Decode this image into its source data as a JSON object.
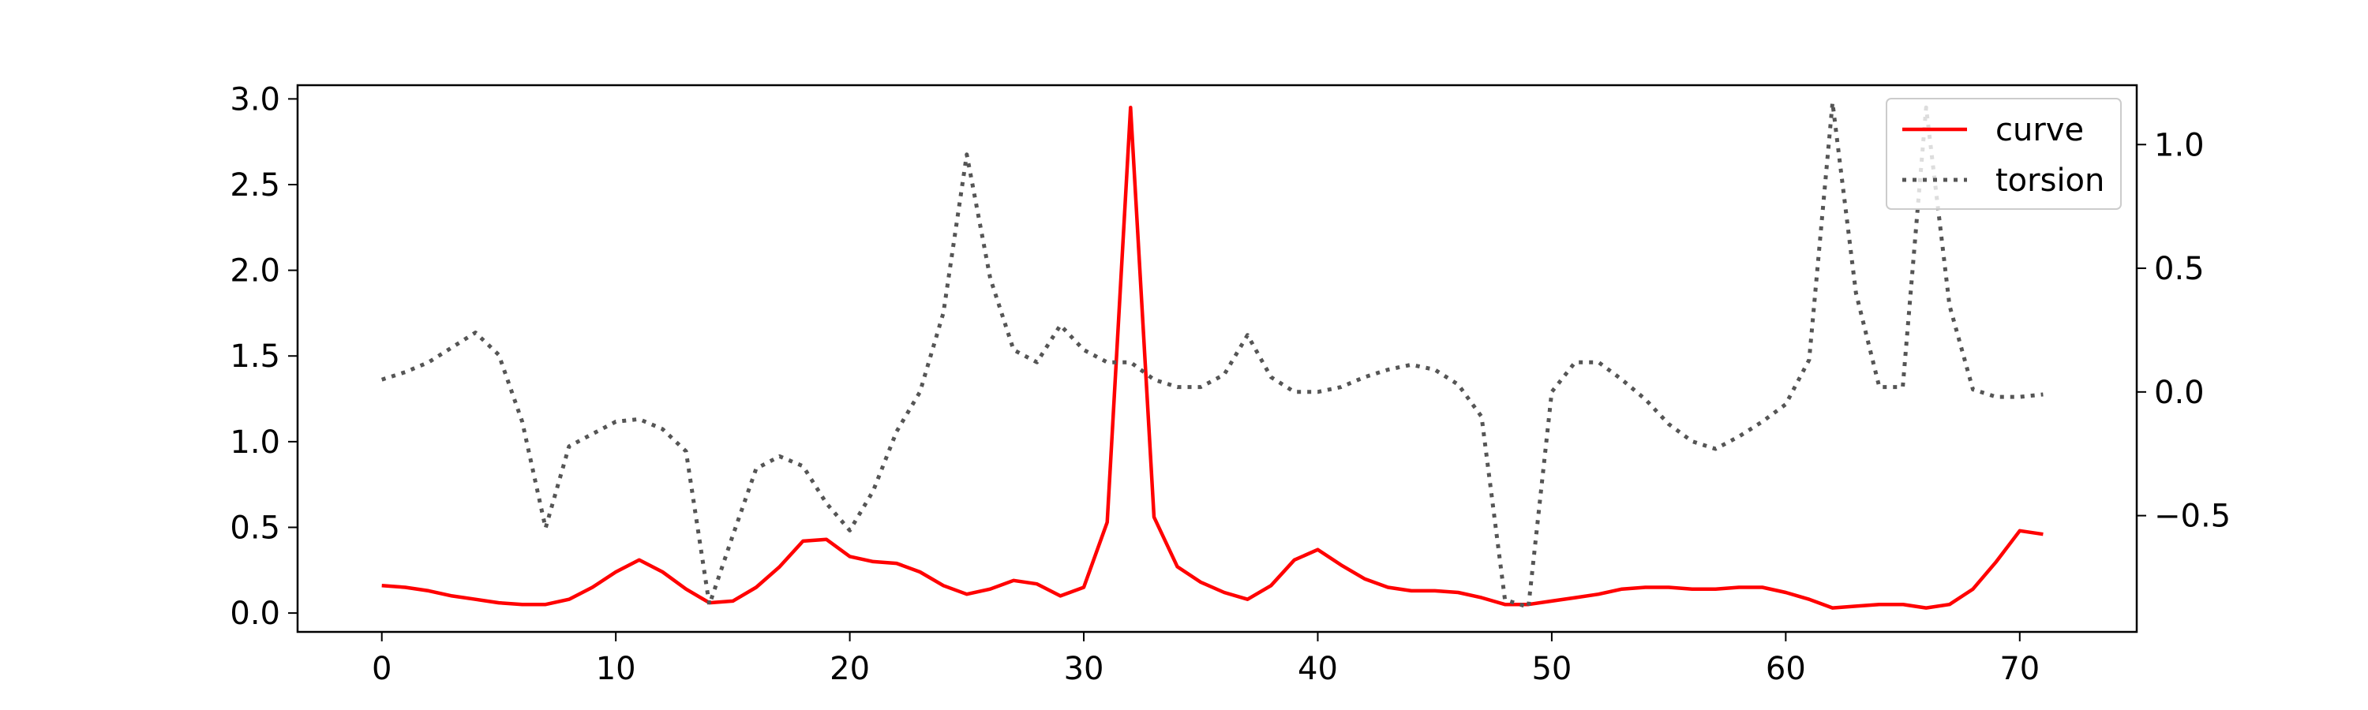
{
  "chart_data": {
    "type": "line",
    "title": "",
    "xlabel": "",
    "ylabel": "",
    "xlim": [
      -3.6,
      75.0
    ],
    "ylim": [
      -0.11,
      3.08
    ],
    "y2lim": [
      -0.97,
      1.24
    ],
    "x_ticks": [
      0,
      10,
      20,
      30,
      40,
      50,
      60,
      70
    ],
    "y_ticks": [
      0.0,
      0.5,
      1.0,
      1.5,
      2.0,
      2.5,
      3.0
    ],
    "y2_ticks": [
      -0.5,
      0.0,
      0.5,
      1.0
    ],
    "x_tick_labels": [
      "0",
      "10",
      "20",
      "30",
      "40",
      "50",
      "60",
      "70"
    ],
    "y_tick_labels": [
      "0.0",
      "0.5",
      "1.0",
      "1.5",
      "2.0",
      "2.5",
      "3.0"
    ],
    "y2_tick_labels": [
      "−0.5",
      "0.0",
      "0.5",
      "1.0"
    ],
    "grid": false,
    "legend_position": "top-right",
    "series": [
      {
        "name": "curve",
        "axis": "left",
        "color": "#ff0000",
        "style": "solid",
        "x": [
          0,
          1,
          2,
          3,
          4,
          5,
          6,
          7,
          8,
          9,
          10,
          11,
          12,
          13,
          14,
          15,
          16,
          17,
          18,
          19,
          20,
          21,
          22,
          23,
          24,
          25,
          26,
          27,
          28,
          29,
          30,
          31,
          32,
          33,
          34,
          35,
          36,
          37,
          38,
          39,
          40,
          41,
          42,
          43,
          44,
          45,
          46,
          47,
          48,
          49,
          50,
          51,
          52,
          53,
          54,
          55,
          56,
          57,
          58,
          59,
          60,
          61,
          62,
          63,
          64,
          65,
          66,
          67,
          68,
          69,
          70,
          71
        ],
        "values": [
          0.16,
          0.15,
          0.13,
          0.1,
          0.08,
          0.06,
          0.05,
          0.05,
          0.08,
          0.15,
          0.24,
          0.31,
          0.24,
          0.14,
          0.06,
          0.07,
          0.15,
          0.27,
          0.42,
          0.43,
          0.33,
          0.3,
          0.29,
          0.24,
          0.16,
          0.11,
          0.14,
          0.19,
          0.17,
          0.1,
          0.15,
          0.53,
          2.95,
          0.56,
          0.27,
          0.18,
          0.12,
          0.08,
          0.16,
          0.31,
          0.37,
          0.28,
          0.2,
          0.15,
          0.13,
          0.13,
          0.12,
          0.09,
          0.05,
          0.05,
          0.07,
          0.09,
          0.11,
          0.14,
          0.15,
          0.15,
          0.14,
          0.14,
          0.15,
          0.15,
          0.12,
          0.08,
          0.03,
          0.04,
          0.05,
          0.05,
          0.03,
          0.05,
          0.14,
          0.3,
          0.48,
          0.46
        ]
      },
      {
        "name": "torsion",
        "axis": "right",
        "color": "#555555",
        "style": "dotted",
        "x": [
          0,
          1,
          2,
          3,
          4,
          5,
          6,
          7,
          8,
          9,
          10,
          11,
          12,
          13,
          14,
          15,
          16,
          17,
          18,
          19,
          20,
          21,
          22,
          23,
          24,
          25,
          26,
          27,
          28,
          29,
          30,
          31,
          32,
          33,
          34,
          35,
          36,
          37,
          38,
          39,
          40,
          41,
          42,
          43,
          44,
          45,
          46,
          47,
          48,
          49,
          50,
          51,
          52,
          53,
          54,
          55,
          56,
          57,
          58,
          59,
          60,
          61,
          62,
          63,
          64,
          65,
          66,
          67,
          68,
          69,
          70,
          71
        ],
        "values": [
          0.05,
          0.08,
          0.12,
          0.18,
          0.24,
          0.15,
          -0.12,
          -0.55,
          -0.22,
          -0.17,
          -0.12,
          -0.11,
          -0.15,
          -0.24,
          -0.86,
          -0.58,
          -0.31,
          -0.26,
          -0.3,
          -0.45,
          -0.56,
          -0.4,
          -0.16,
          0.0,
          0.32,
          0.96,
          0.46,
          0.17,
          0.12,
          0.27,
          0.17,
          0.12,
          0.12,
          0.05,
          0.02,
          0.02,
          0.07,
          0.23,
          0.06,
          0.0,
          0.0,
          0.02,
          0.06,
          0.09,
          0.11,
          0.09,
          0.03,
          -0.1,
          -0.84,
          -0.87,
          0.0,
          0.12,
          0.12,
          0.05,
          -0.03,
          -0.13,
          -0.2,
          -0.23,
          -0.18,
          -0.12,
          -0.05,
          0.13,
          1.17,
          0.4,
          0.02,
          0.02,
          1.15,
          0.35,
          0.01,
          -0.02,
          -0.02,
          -0.01
        ]
      }
    ]
  }
}
